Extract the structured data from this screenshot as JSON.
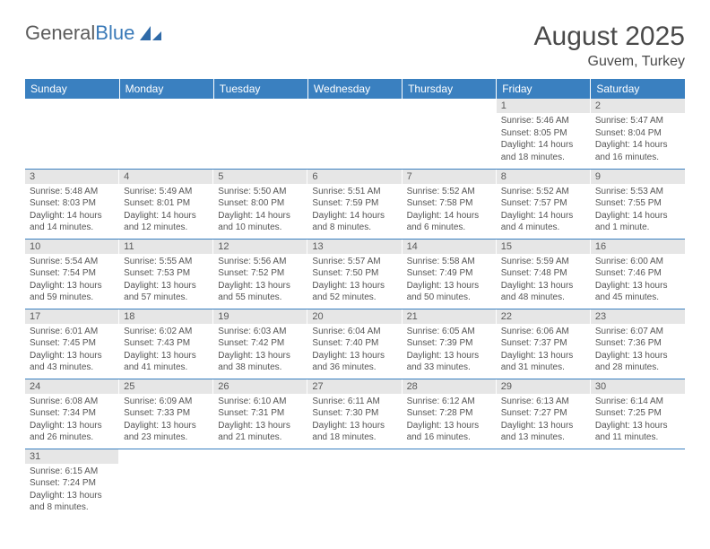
{
  "logo": {
    "text1": "General",
    "text2": "Blue"
  },
  "header": {
    "month_title": "August 2025",
    "location": "Guvem, Turkey"
  },
  "styling": {
    "header_bg": "#3a80c0",
    "header_text": "#ffffff",
    "daynum_bg": "#e6e6e6",
    "row_border": "#3a80c0",
    "body_text": "#555555",
    "title_fontsize": 30,
    "location_fontsize": 16,
    "dayhead_fontsize": 12,
    "daynum_fontsize": 11,
    "body_fontsize": 10
  },
  "day_headers": [
    "Sunday",
    "Monday",
    "Tuesday",
    "Wednesday",
    "Thursday",
    "Friday",
    "Saturday"
  ],
  "weeks": [
    [
      {
        "n": "",
        "sr": "",
        "ss": "",
        "dl": ""
      },
      {
        "n": "",
        "sr": "",
        "ss": "",
        "dl": ""
      },
      {
        "n": "",
        "sr": "",
        "ss": "",
        "dl": ""
      },
      {
        "n": "",
        "sr": "",
        "ss": "",
        "dl": ""
      },
      {
        "n": "",
        "sr": "",
        "ss": "",
        "dl": ""
      },
      {
        "n": "1",
        "sr": "Sunrise: 5:46 AM",
        "ss": "Sunset: 8:05 PM",
        "dl": "Daylight: 14 hours and 18 minutes."
      },
      {
        "n": "2",
        "sr": "Sunrise: 5:47 AM",
        "ss": "Sunset: 8:04 PM",
        "dl": "Daylight: 14 hours and 16 minutes."
      }
    ],
    [
      {
        "n": "3",
        "sr": "Sunrise: 5:48 AM",
        "ss": "Sunset: 8:03 PM",
        "dl": "Daylight: 14 hours and 14 minutes."
      },
      {
        "n": "4",
        "sr": "Sunrise: 5:49 AM",
        "ss": "Sunset: 8:01 PM",
        "dl": "Daylight: 14 hours and 12 minutes."
      },
      {
        "n": "5",
        "sr": "Sunrise: 5:50 AM",
        "ss": "Sunset: 8:00 PM",
        "dl": "Daylight: 14 hours and 10 minutes."
      },
      {
        "n": "6",
        "sr": "Sunrise: 5:51 AM",
        "ss": "Sunset: 7:59 PM",
        "dl": "Daylight: 14 hours and 8 minutes."
      },
      {
        "n": "7",
        "sr": "Sunrise: 5:52 AM",
        "ss": "Sunset: 7:58 PM",
        "dl": "Daylight: 14 hours and 6 minutes."
      },
      {
        "n": "8",
        "sr": "Sunrise: 5:52 AM",
        "ss": "Sunset: 7:57 PM",
        "dl": "Daylight: 14 hours and 4 minutes."
      },
      {
        "n": "9",
        "sr": "Sunrise: 5:53 AM",
        "ss": "Sunset: 7:55 PM",
        "dl": "Daylight: 14 hours and 1 minute."
      }
    ],
    [
      {
        "n": "10",
        "sr": "Sunrise: 5:54 AM",
        "ss": "Sunset: 7:54 PM",
        "dl": "Daylight: 13 hours and 59 minutes."
      },
      {
        "n": "11",
        "sr": "Sunrise: 5:55 AM",
        "ss": "Sunset: 7:53 PM",
        "dl": "Daylight: 13 hours and 57 minutes."
      },
      {
        "n": "12",
        "sr": "Sunrise: 5:56 AM",
        "ss": "Sunset: 7:52 PM",
        "dl": "Daylight: 13 hours and 55 minutes."
      },
      {
        "n": "13",
        "sr": "Sunrise: 5:57 AM",
        "ss": "Sunset: 7:50 PM",
        "dl": "Daylight: 13 hours and 52 minutes."
      },
      {
        "n": "14",
        "sr": "Sunrise: 5:58 AM",
        "ss": "Sunset: 7:49 PM",
        "dl": "Daylight: 13 hours and 50 minutes."
      },
      {
        "n": "15",
        "sr": "Sunrise: 5:59 AM",
        "ss": "Sunset: 7:48 PM",
        "dl": "Daylight: 13 hours and 48 minutes."
      },
      {
        "n": "16",
        "sr": "Sunrise: 6:00 AM",
        "ss": "Sunset: 7:46 PM",
        "dl": "Daylight: 13 hours and 45 minutes."
      }
    ],
    [
      {
        "n": "17",
        "sr": "Sunrise: 6:01 AM",
        "ss": "Sunset: 7:45 PM",
        "dl": "Daylight: 13 hours and 43 minutes."
      },
      {
        "n": "18",
        "sr": "Sunrise: 6:02 AM",
        "ss": "Sunset: 7:43 PM",
        "dl": "Daylight: 13 hours and 41 minutes."
      },
      {
        "n": "19",
        "sr": "Sunrise: 6:03 AM",
        "ss": "Sunset: 7:42 PM",
        "dl": "Daylight: 13 hours and 38 minutes."
      },
      {
        "n": "20",
        "sr": "Sunrise: 6:04 AM",
        "ss": "Sunset: 7:40 PM",
        "dl": "Daylight: 13 hours and 36 minutes."
      },
      {
        "n": "21",
        "sr": "Sunrise: 6:05 AM",
        "ss": "Sunset: 7:39 PM",
        "dl": "Daylight: 13 hours and 33 minutes."
      },
      {
        "n": "22",
        "sr": "Sunrise: 6:06 AM",
        "ss": "Sunset: 7:37 PM",
        "dl": "Daylight: 13 hours and 31 minutes."
      },
      {
        "n": "23",
        "sr": "Sunrise: 6:07 AM",
        "ss": "Sunset: 7:36 PM",
        "dl": "Daylight: 13 hours and 28 minutes."
      }
    ],
    [
      {
        "n": "24",
        "sr": "Sunrise: 6:08 AM",
        "ss": "Sunset: 7:34 PM",
        "dl": "Daylight: 13 hours and 26 minutes."
      },
      {
        "n": "25",
        "sr": "Sunrise: 6:09 AM",
        "ss": "Sunset: 7:33 PM",
        "dl": "Daylight: 13 hours and 23 minutes."
      },
      {
        "n": "26",
        "sr": "Sunrise: 6:10 AM",
        "ss": "Sunset: 7:31 PM",
        "dl": "Daylight: 13 hours and 21 minutes."
      },
      {
        "n": "27",
        "sr": "Sunrise: 6:11 AM",
        "ss": "Sunset: 7:30 PM",
        "dl": "Daylight: 13 hours and 18 minutes."
      },
      {
        "n": "28",
        "sr": "Sunrise: 6:12 AM",
        "ss": "Sunset: 7:28 PM",
        "dl": "Daylight: 13 hours and 16 minutes."
      },
      {
        "n": "29",
        "sr": "Sunrise: 6:13 AM",
        "ss": "Sunset: 7:27 PM",
        "dl": "Daylight: 13 hours and 13 minutes."
      },
      {
        "n": "30",
        "sr": "Sunrise: 6:14 AM",
        "ss": "Sunset: 7:25 PM",
        "dl": "Daylight: 13 hours and 11 minutes."
      }
    ],
    [
      {
        "n": "31",
        "sr": "Sunrise: 6:15 AM",
        "ss": "Sunset: 7:24 PM",
        "dl": "Daylight: 13 hours and 8 minutes."
      },
      {
        "n": "",
        "sr": "",
        "ss": "",
        "dl": ""
      },
      {
        "n": "",
        "sr": "",
        "ss": "",
        "dl": ""
      },
      {
        "n": "",
        "sr": "",
        "ss": "",
        "dl": ""
      },
      {
        "n": "",
        "sr": "",
        "ss": "",
        "dl": ""
      },
      {
        "n": "",
        "sr": "",
        "ss": "",
        "dl": ""
      },
      {
        "n": "",
        "sr": "",
        "ss": "",
        "dl": ""
      }
    ]
  ]
}
